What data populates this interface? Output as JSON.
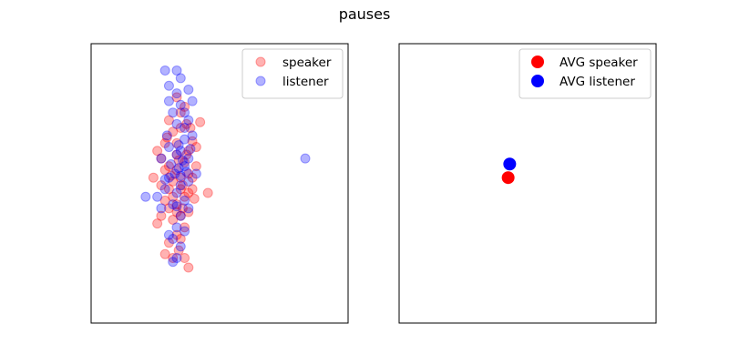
{
  "figure": {
    "title": "pauses"
  },
  "chart_data": [
    {
      "type": "scatter",
      "title": "",
      "xlabel": "",
      "ylabel": "",
      "grid": false,
      "ticks_visible": false,
      "xlim": [
        -2.2,
        4.4
      ],
      "ylim": [
        -4.3,
        3.0
      ],
      "legend": {
        "placement": "top-right",
        "entries": [
          "speaker",
          "listener"
        ]
      },
      "series": [
        {
          "name": "speaker",
          "color": "#ff0000",
          "alpha": 0.3,
          "points": [
            [
              0.0,
              1.6
            ],
            [
              0.1,
              1.2
            ],
            [
              -0.2,
              1.0
            ],
            [
              0.2,
              1.35
            ],
            [
              0.35,
              0.8
            ],
            [
              0.25,
              0.9
            ],
            [
              -0.1,
              0.7
            ],
            [
              0.1,
              0.8
            ],
            [
              -0.3,
              0.4
            ],
            [
              0.3,
              0.2
            ],
            [
              0.0,
              0.4
            ],
            [
              0.4,
              0.45
            ],
            [
              0.6,
              0.95
            ],
            [
              -0.4,
              0.0
            ],
            [
              0.2,
              -0.1
            ],
            [
              0.0,
              -0.3
            ],
            [
              -0.3,
              -0.3
            ],
            [
              0.4,
              -0.5
            ],
            [
              0.1,
              -0.5
            ],
            [
              -0.1,
              -0.6
            ],
            [
              0.3,
              -0.4
            ],
            [
              -0.2,
              -0.2
            ],
            [
              0.5,
              -0.2
            ],
            [
              0.25,
              0.1
            ],
            [
              0.0,
              0.1
            ],
            [
              -0.4,
              -0.7
            ],
            [
              -0.2,
              -0.8
            ],
            [
              0.1,
              -0.8
            ],
            [
              0.3,
              -0.9
            ],
            [
              -0.1,
              -1.0
            ],
            [
              -0.3,
              -1.1
            ],
            [
              0.0,
              -1.2
            ],
            [
              0.2,
              -1.0
            ],
            [
              0.4,
              -0.8
            ],
            [
              0.15,
              -0.7
            ],
            [
              -0.15,
              -0.45
            ],
            [
              -0.2,
              -1.3
            ],
            [
              0.1,
              -1.5
            ],
            [
              -0.1,
              -1.6
            ],
            [
              0.2,
              -1.8
            ],
            [
              -0.4,
              -1.5
            ],
            [
              0.0,
              -1.4
            ],
            [
              -0.5,
              -1.7
            ],
            [
              0.3,
              -1.4
            ],
            [
              0.15,
              -1.3
            ],
            [
              0.0,
              -2.0
            ],
            [
              -0.2,
              -2.2
            ],
            [
              0.1,
              -2.1
            ],
            [
              0.05,
              -2.4
            ],
            [
              -0.1,
              -2.6
            ],
            [
              0.2,
              -2.6
            ],
            [
              -0.3,
              -2.5
            ],
            [
              0.3,
              -2.85
            ],
            [
              0.8,
              -0.9
            ],
            [
              -0.6,
              -0.5
            ],
            [
              0.5,
              0.3
            ],
            [
              -0.5,
              0.2
            ],
            [
              0.05,
              -0.05
            ],
            [
              0.45,
              -1.05
            ],
            [
              -0.25,
              0.55
            ]
          ]
        },
        {
          "name": "listener",
          "color": "#0000ff",
          "alpha": 0.3,
          "points": [
            [
              -0.3,
              2.3
            ],
            [
              0.0,
              2.3
            ],
            [
              0.1,
              2.1
            ],
            [
              -0.2,
              1.9
            ],
            [
              0.3,
              1.8
            ],
            [
              0.0,
              1.7
            ],
            [
              -0.2,
              1.5
            ],
            [
              0.4,
              1.5
            ],
            [
              0.1,
              1.4
            ],
            [
              0.2,
              1.2
            ],
            [
              -0.1,
              1.2
            ],
            [
              0.3,
              1.0
            ],
            [
              0.0,
              0.9
            ],
            [
              0.4,
              0.6
            ],
            [
              0.2,
              0.5
            ],
            [
              -0.2,
              0.3
            ],
            [
              0.0,
              0.1
            ],
            [
              -0.4,
              0.0
            ],
            [
              0.3,
              0.0
            ],
            [
              0.1,
              0.2
            ],
            [
              0.2,
              -0.2
            ],
            [
              -0.05,
              -0.4
            ],
            [
              0.5,
              -0.4
            ],
            [
              -0.2,
              -0.5
            ],
            [
              0.1,
              -0.7
            ],
            [
              0.3,
              -0.6
            ],
            [
              -0.3,
              -0.8
            ],
            [
              0.0,
              -0.9
            ],
            [
              0.2,
              -1.1
            ],
            [
              -0.1,
              -1.2
            ],
            [
              -0.4,
              -1.3
            ],
            [
              0.1,
              -1.5
            ],
            [
              0.3,
              -1.3
            ],
            [
              -0.5,
              -1.0
            ],
            [
              -0.8,
              -1.0
            ],
            [
              0.0,
              -1.8
            ],
            [
              -0.2,
              -2.0
            ],
            [
              0.2,
              -1.9
            ],
            [
              0.1,
              -2.3
            ],
            [
              -0.1,
              -2.1
            ],
            [
              0.0,
              -2.6
            ],
            [
              -0.1,
              -2.7
            ],
            [
              3.3,
              0.0
            ],
            [
              0.05,
              -0.25
            ],
            [
              0.15,
              -0.05
            ],
            [
              0.25,
              -0.35
            ],
            [
              -0.15,
              -0.15
            ],
            [
              0.05,
              0.35
            ],
            [
              0.35,
              0.25
            ],
            [
              -0.3,
              -0.55
            ],
            [
              0.0,
              -1.25
            ],
            [
              0.2,
              0.8
            ],
            [
              -0.25,
              0.6
            ],
            [
              0.1,
              -0.45
            ]
          ]
        }
      ]
    },
    {
      "type": "scatter",
      "title": "",
      "xlabel": "",
      "ylabel": "",
      "grid": false,
      "ticks_visible": false,
      "xlim": [
        -2.2,
        4.4
      ],
      "ylim": [
        -4.3,
        3.0
      ],
      "legend": {
        "placement": "top-right",
        "entries": [
          "AVG speaker",
          "AVG listener"
        ]
      },
      "series": [
        {
          "name": "AVG speaker",
          "color": "#ff0000",
          "alpha": 1.0,
          "points": [
            [
              0.6,
              -0.5
            ]
          ]
        },
        {
          "name": "AVG listener",
          "color": "#0000ff",
          "alpha": 1.0,
          "points": [
            [
              0.64,
              -0.145
            ]
          ]
        }
      ]
    }
  ]
}
